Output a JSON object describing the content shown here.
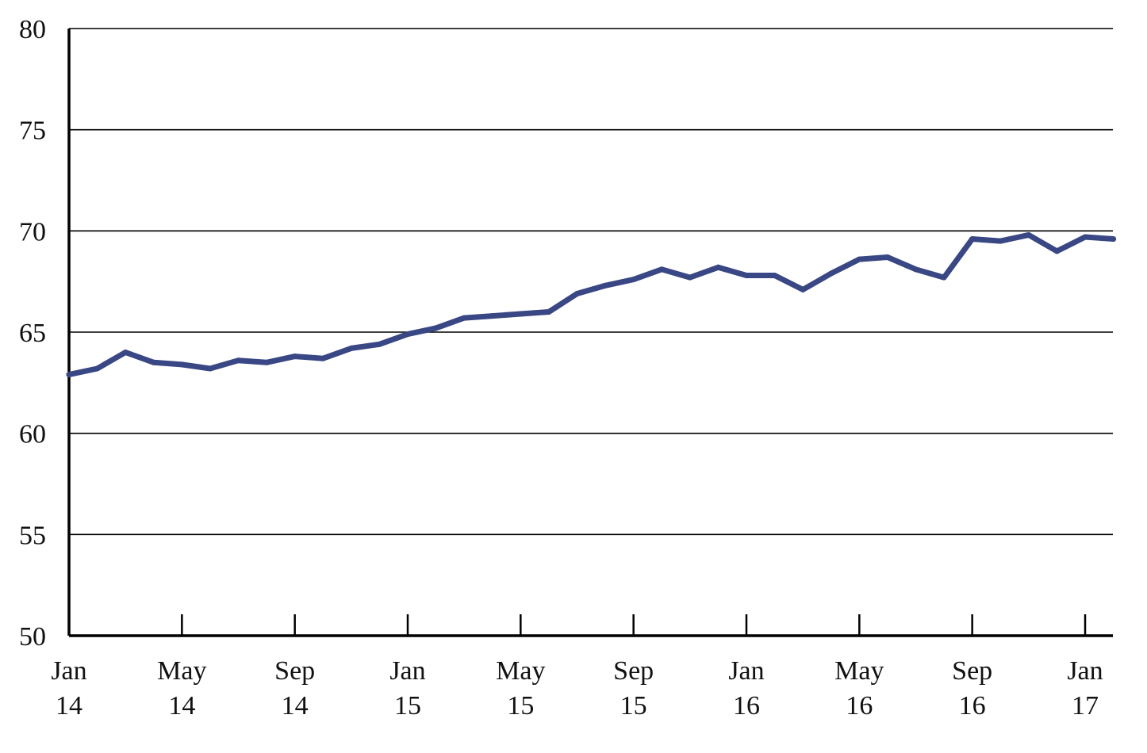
{
  "chart_data": {
    "type": "line",
    "title": "",
    "xlabel": "",
    "ylabel": "",
    "ylim": [
      50,
      80
    ],
    "yticks": [
      50,
      55,
      60,
      65,
      70,
      75,
      80
    ],
    "ytick_labels": [
      "50",
      "55",
      "60",
      "65",
      "70",
      "75",
      "80"
    ],
    "grid": "horizontal",
    "legend": "none",
    "line_color": "#394784",
    "xticks": [
      {
        "date": "2014-01",
        "month": "Jan",
        "year": "14"
      },
      {
        "date": "2014-05",
        "month": "May",
        "year": "14"
      },
      {
        "date": "2014-09",
        "month": "Sep",
        "year": "14"
      },
      {
        "date": "2015-01",
        "month": "Jan",
        "year": "15"
      },
      {
        "date": "2015-05",
        "month": "May",
        "year": "15"
      },
      {
        "date": "2015-09",
        "month": "Sep",
        "year": "15"
      },
      {
        "date": "2016-01",
        "month": "Jan",
        "year": "16"
      },
      {
        "date": "2016-05",
        "month": "May",
        "year": "16"
      },
      {
        "date": "2016-09",
        "month": "Sep",
        "year": "16"
      },
      {
        "date": "2017-01",
        "month": "Jan",
        "year": "17"
      }
    ],
    "series": [
      {
        "x": [
          "2014-01",
          "2014-02",
          "2014-03",
          "2014-04",
          "2014-05",
          "2014-06",
          "2014-07",
          "2014-08",
          "2014-09",
          "2014-10",
          "2014-11",
          "2014-12",
          "2015-01",
          "2015-02",
          "2015-03",
          "2015-04",
          "2015-05",
          "2015-06",
          "2015-07",
          "2015-08",
          "2015-09",
          "2015-10",
          "2015-11",
          "2015-12",
          "2016-01",
          "2016-02",
          "2016-03",
          "2016-04",
          "2016-05",
          "2016-06",
          "2016-07",
          "2016-08",
          "2016-09",
          "2016-10",
          "2016-11",
          "2016-12",
          "2017-01",
          "2017-02"
        ],
        "values": [
          62.9,
          63.2,
          64.0,
          63.5,
          63.4,
          63.2,
          63.6,
          63.5,
          63.8,
          63.7,
          64.2,
          64.4,
          64.9,
          65.2,
          65.7,
          65.8,
          65.9,
          66.0,
          66.9,
          67.3,
          67.6,
          68.1,
          67.7,
          68.2,
          67.8,
          67.8,
          67.1,
          67.9,
          68.6,
          68.7,
          68.1,
          67.7,
          69.6,
          69.5,
          69.8,
          69.0,
          69.7,
          69.6
        ]
      }
    ]
  }
}
